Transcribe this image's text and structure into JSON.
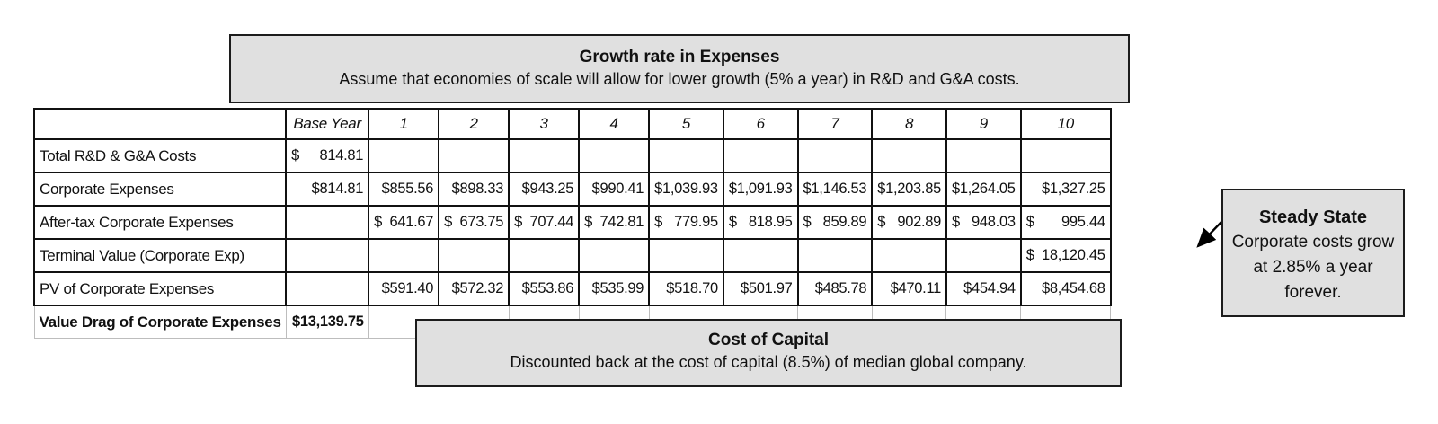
{
  "callouts": {
    "growth": {
      "title": "Growth rate in Expenses",
      "body": "Assume that economies of scale will allow for lower growth (5% a year) in R&D and G&A costs."
    },
    "steady_state": {
      "title": "Steady State",
      "body": "Corporate costs grow at 2.85% a year forever."
    },
    "cost_of_capital": {
      "title": "Cost of Capital",
      "body": "Discounted back at the cost of capital (8.5%) of median global company."
    }
  },
  "currency_symbol": "$",
  "table": {
    "columns": [
      "",
      "Base Year",
      "1",
      "2",
      "3",
      "4",
      "5",
      "6",
      "7",
      "8",
      "9",
      "10"
    ],
    "rows": [
      {
        "label": "Total R&D & G&A Costs",
        "format": "acct",
        "cells": [
          "814.81",
          "",
          "",
          "",
          "",
          "",
          "",
          "",
          "",
          "",
          ""
        ]
      },
      {
        "label": "Corporate Expenses",
        "format": "plain",
        "cells": [
          "$814.81",
          "$855.56",
          "$898.33",
          "$943.25",
          "$990.41",
          "$1,039.93",
          "$1,091.93",
          "$1,146.53",
          "$1,203.85",
          "$1,264.05",
          "$1,327.25"
        ]
      },
      {
        "label": "After-tax Corporate Expenses",
        "format": "acct",
        "cells": [
          "",
          "641.67",
          "673.75",
          "707.44",
          "742.81",
          "779.95",
          "818.95",
          "859.89",
          "902.89",
          "948.03",
          "995.44"
        ]
      },
      {
        "label": "Terminal Value (Corporate Exp)",
        "format": "acct",
        "cells": [
          "",
          "",
          "",
          "",
          "",
          "",
          "",
          "",
          "",
          "",
          "18,120.45"
        ]
      },
      {
        "label": "PV of Corporate Expenses",
        "format": "plain",
        "cells": [
          "",
          "$591.40",
          "$572.32",
          "$553.86",
          "$535.99",
          "$518.70",
          "$501.97",
          "$485.78",
          "$470.11",
          "$454.94",
          "$8,454.68"
        ]
      },
      {
        "label": "Value Drag of Corporate Expenses",
        "format": "plain",
        "bold": true,
        "light": true,
        "thick_cell_index": 0,
        "cells": [
          "$13,139.75",
          "",
          "",
          "",
          "",
          "",
          "",
          "",
          "",
          "",
          ""
        ]
      }
    ]
  },
  "colors": {
    "callout_fill": "#e0e0e0",
    "border_black": "#111111",
    "light_grid": "#bdbdbd"
  }
}
